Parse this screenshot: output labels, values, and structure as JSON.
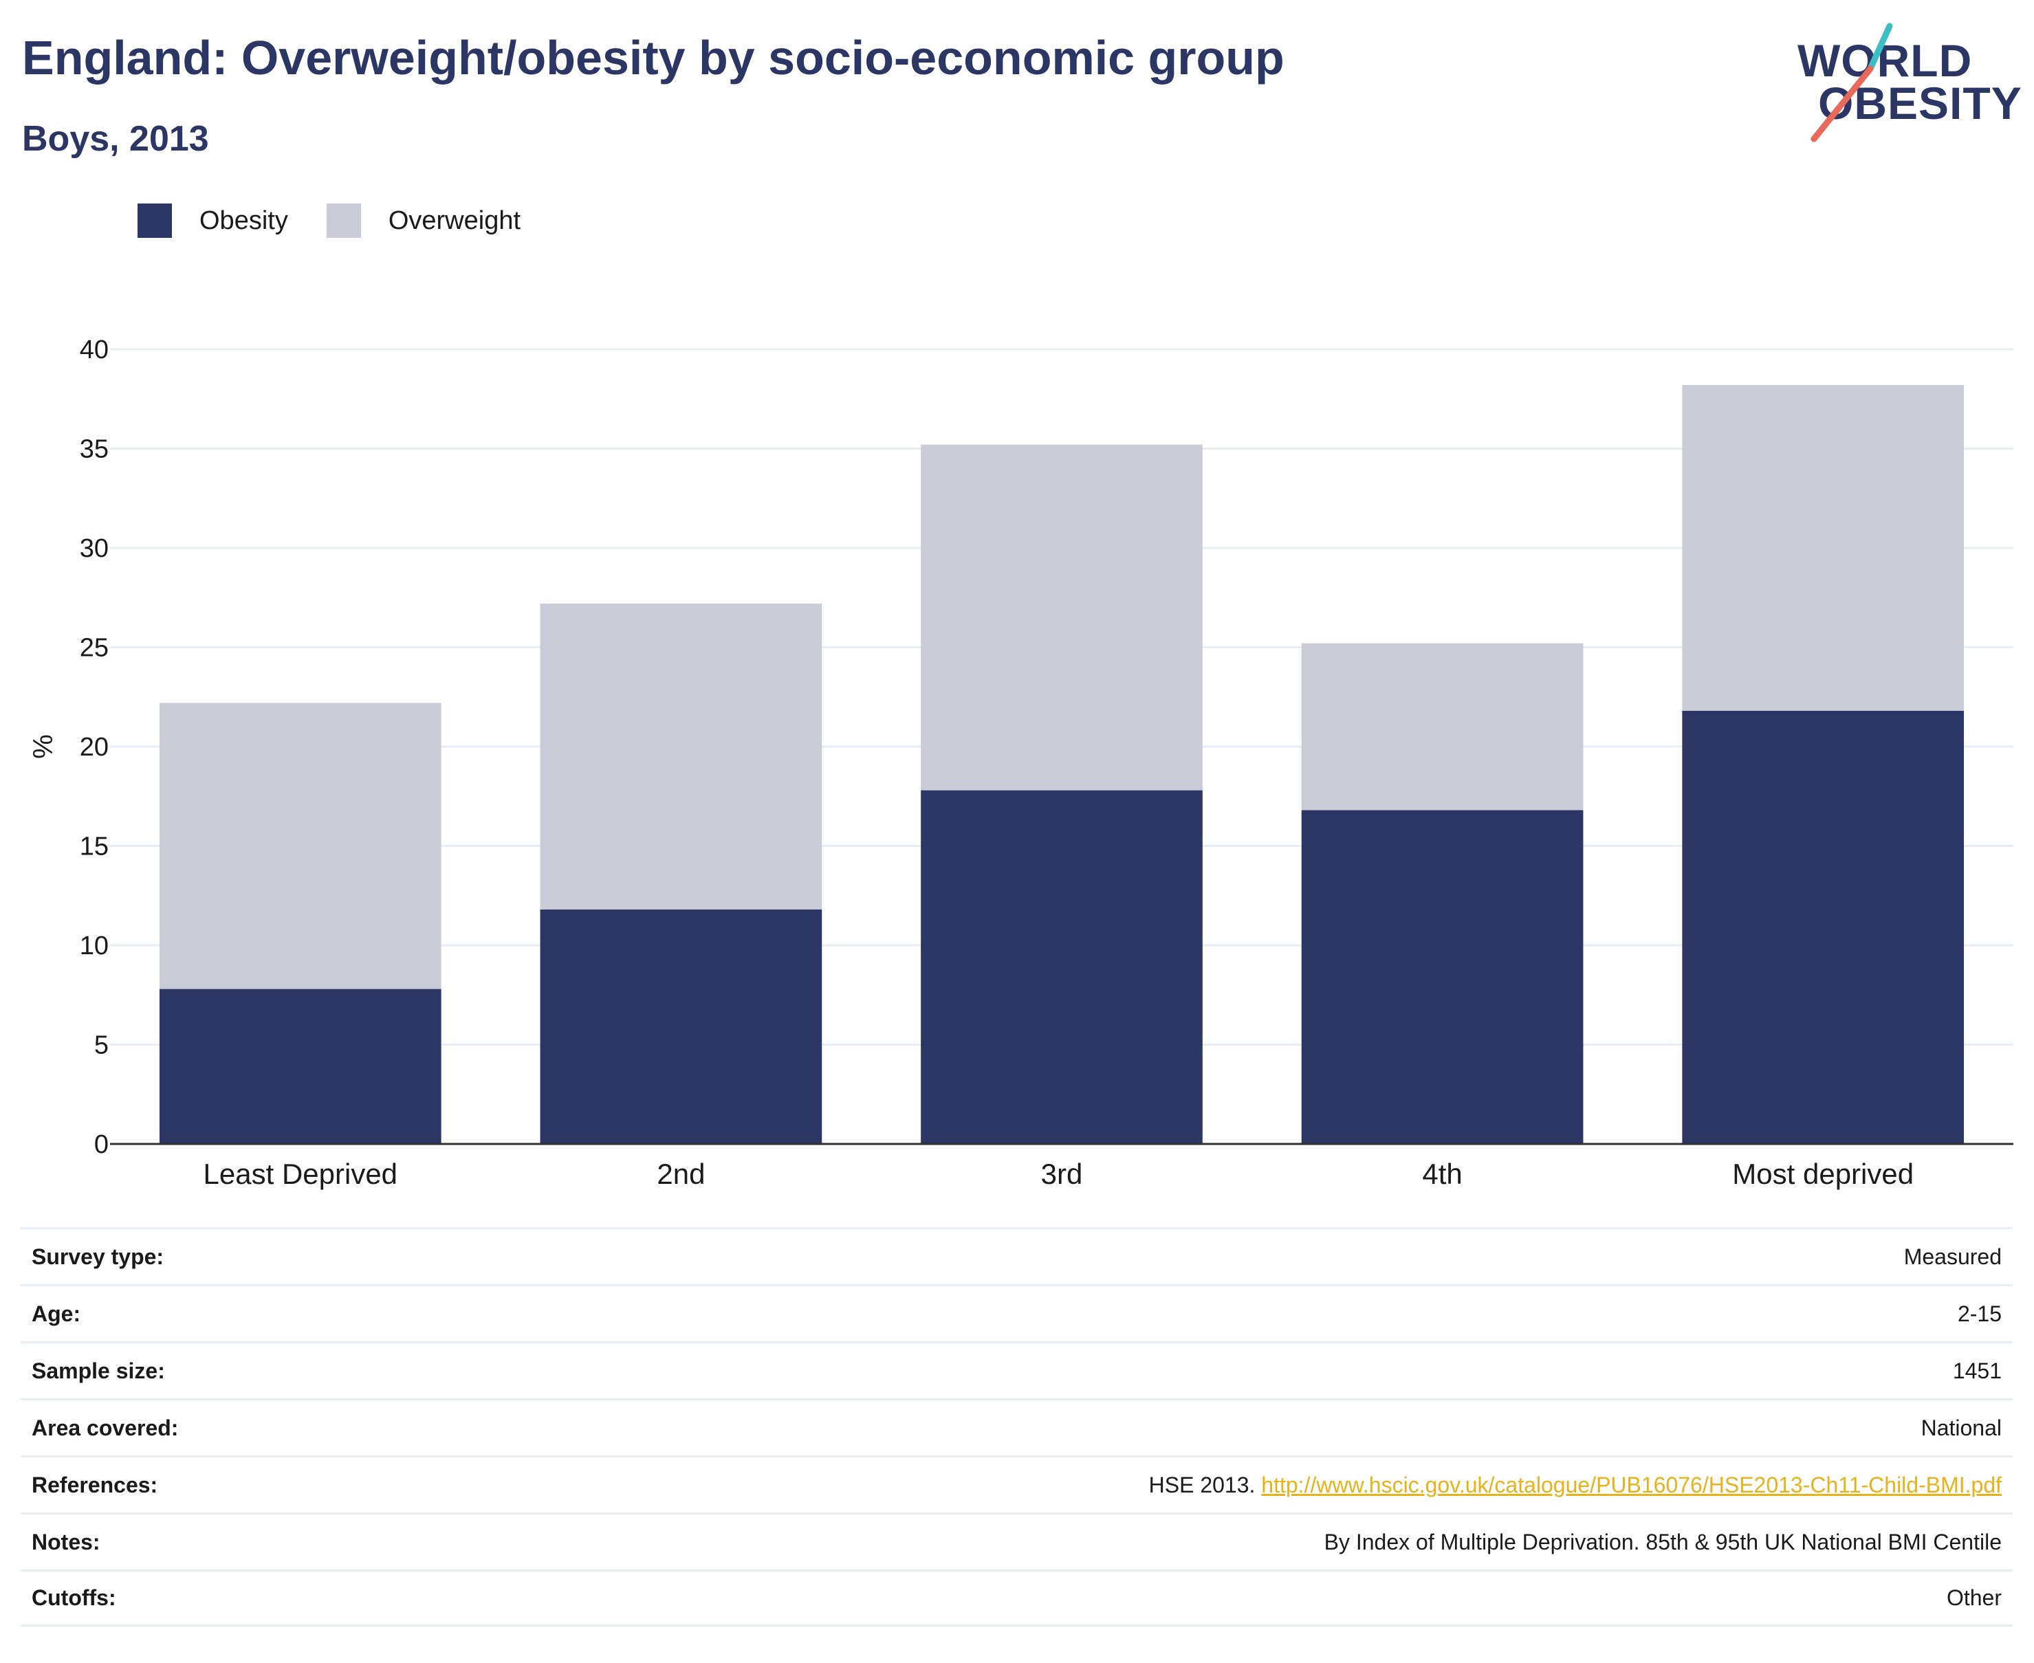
{
  "title": "England: Overweight/obesity by socio-economic group",
  "subtitle": "Boys, 2013",
  "logo": {
    "line1": "WORLD",
    "line2": "OBESITY"
  },
  "colors": {
    "obesity": "#2b3664",
    "overweight": "#c9cbd7",
    "accent_teal": "#3bbfc4",
    "accent_coral": "#e8685a",
    "link": "#e8b21a"
  },
  "chart_data": {
    "type": "bar",
    "stacked": true,
    "categories": [
      "Least Deprived",
      "2nd",
      "3rd",
      "4th",
      "Most deprived"
    ],
    "series": [
      {
        "name": "Obesity",
        "values": [
          7.8,
          11.8,
          17.8,
          16.8,
          21.8
        ]
      },
      {
        "name": "Overweight",
        "values": [
          14.4,
          15.4,
          17.4,
          8.4,
          16.4
        ]
      }
    ],
    "ylabel": "%",
    "ylim": [
      0,
      40
    ],
    "yticks": [
      0,
      5,
      10,
      15,
      20,
      25,
      30,
      35,
      40
    ],
    "grid": true,
    "legend_position": "top-left"
  },
  "meta": [
    {
      "key": "Survey type:",
      "value": "Measured"
    },
    {
      "key": "Age:",
      "value": "2-15"
    },
    {
      "key": "Sample size:",
      "value": "1451"
    },
    {
      "key": "Area covered:",
      "value": "National"
    },
    {
      "key": "References:",
      "value": "HSE 2013.",
      "link": "http://www.hscic.gov.uk/catalogue/PUB16076/HSE2013-Ch11-Child-BMI.pdf"
    },
    {
      "key": "Notes:",
      "value": "By Index of Multiple Deprivation. 85th & 95th UK National BMI Centile"
    },
    {
      "key": "Cutoffs:",
      "value": "Other"
    }
  ]
}
